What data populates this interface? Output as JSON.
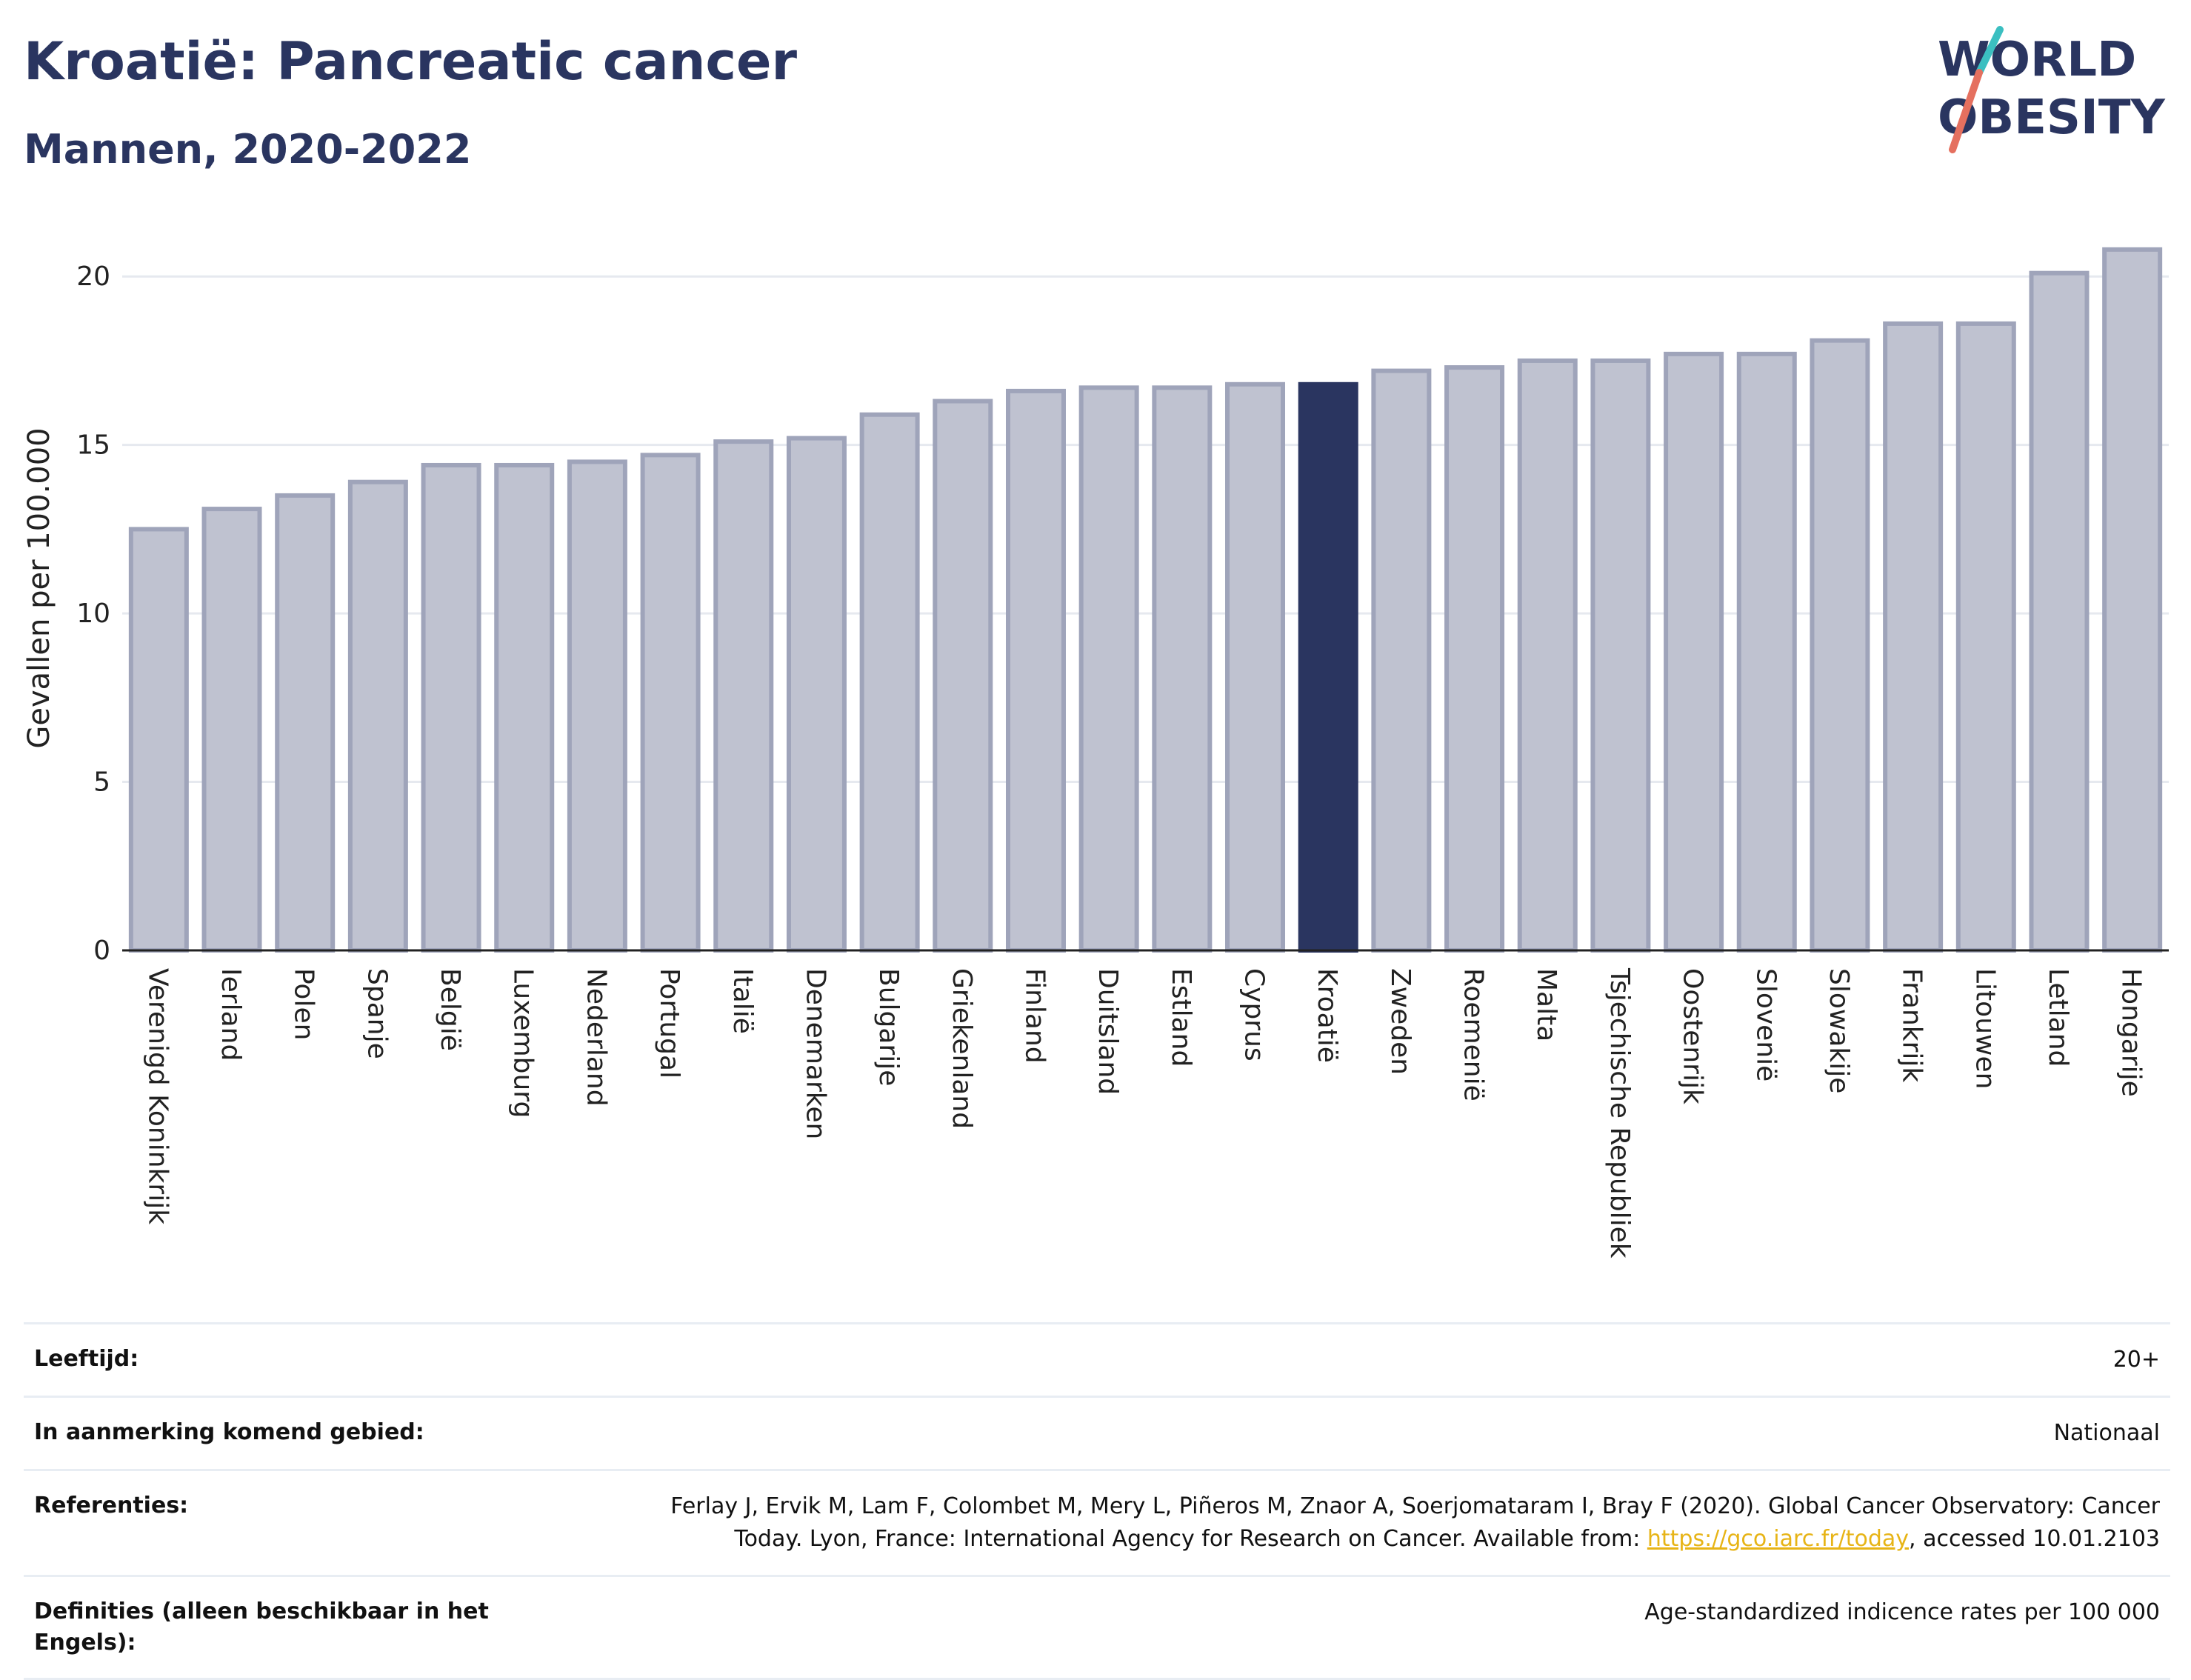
{
  "header": {
    "title": "Kroatië: Pancreatic cancer",
    "subtitle": "Mannen, 2020-2022"
  },
  "logo": {
    "line1": "WORLD",
    "line2": "OBESITY"
  },
  "colors": {
    "default_bar": "#bfc2d0",
    "default_bar_border": "#9fa4ba",
    "highlight_bar": "#2a3560"
  },
  "chart_data": {
    "type": "bar",
    "ylabel": "Gevallen per 100.000",
    "xlabel": "",
    "ylim": [
      0,
      21.5
    ],
    "yticks": [
      0,
      5,
      10,
      15,
      20
    ],
    "grid": true,
    "highlight": "Kroatië",
    "categories": [
      "Verenigd Koninkrijk",
      "Ierland",
      "Polen",
      "Spanje",
      "België",
      "Luxemburg",
      "Nederland",
      "Portugal",
      "Italië",
      "Denemarken",
      "Bulgarije",
      "Griekenland",
      "Finland",
      "Duitsland",
      "Estland",
      "Cyprus",
      "Kroatië",
      "Zweden",
      "Roemenië",
      "Malta",
      "Tsjechische Republiek",
      "Oostenrijk",
      "Slovenië",
      "Slowakije",
      "Frankrijk",
      "Litouwen",
      "Letland",
      "Hongarije"
    ],
    "values": [
      12.5,
      13.1,
      13.5,
      13.9,
      14.4,
      14.4,
      14.5,
      14.7,
      15.1,
      15.2,
      15.9,
      16.3,
      16.6,
      16.7,
      16.7,
      16.8,
      16.8,
      17.2,
      17.3,
      17.5,
      17.5,
      17.7,
      17.7,
      18.1,
      18.6,
      18.6,
      20.1,
      20.8
    ]
  },
  "info": {
    "rows": [
      {
        "label": "Leeftijd:",
        "value": "20+"
      },
      {
        "label": "In aanmerking komend gebied:",
        "value": "Nationaal"
      },
      {
        "label": "Referenties:",
        "value_pre": "Ferlay J, Ervik M, Lam F, Colombet M, Mery L, Piñeros M, Znaor A, Soerjomataram I, Bray F (2020). Global Cancer Observatory: Cancer Today. Lyon, France: International Agency for Research on Cancer. Available from: ",
        "link": "https://gco.iarc.fr/today",
        "value_post": ", accessed 10.01.2103"
      },
      {
        "label": "Definities (alleen beschikbaar in het Engels):",
        "value": "Age-standardized indicence rates per 100 000"
      }
    ]
  }
}
